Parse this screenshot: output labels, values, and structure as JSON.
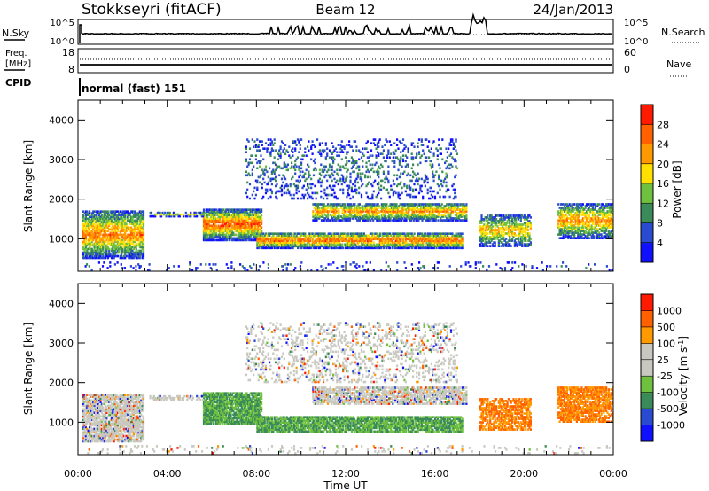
{
  "header": {
    "station": "Stokkseyri (fitACF)",
    "beam": "Beam 12",
    "date": "24/Jan/2013"
  },
  "noise_panel": {
    "left_label": "N.Sky",
    "right_label": "N.Search",
    "left_ticks": [
      "10^5",
      "10^0"
    ],
    "right_ticks": [
      "10^5",
      "10^0"
    ]
  },
  "freq_panel": {
    "left_label_1": "Freq.",
    "left_label_2": "[MHz]",
    "left_ticks": [
      "18",
      "8"
    ],
    "right_ticks": [
      "60",
      "0"
    ],
    "right_label": "Nave",
    "cpid_label": "CPID"
  },
  "cpid_text": "normal (fast) 151",
  "colors": {
    "power": [
      "#1010ff",
      "#2a4ad0",
      "#3a8a5a",
      "#70c040",
      "#ffe000",
      "#ff9900",
      "#ff6000",
      "#ff1a00"
    ],
    "velocity": [
      "#ff1a00",
      "#ff6000",
      "#ff9900",
      "#c8c8c0",
      "#c8c8c0",
      "#70c040",
      "#3a8a5a",
      "#2a4ad0",
      "#1010ff"
    ]
  },
  "chart_data": [
    {
      "type": "heatmap",
      "ylabel": "Slant Range [km]",
      "xlabel": "Time UT",
      "x_ticks": [
        "00:00",
        "04:00",
        "08:00",
        "12:00",
        "16:00",
        "20:00",
        "00:00"
      ],
      "y_ticks": [
        "1000",
        "2000",
        "3000",
        "4000"
      ],
      "colorbar_label": "Power [dB]",
      "colorbar_ticks": [
        "4",
        "8",
        "12",
        "16",
        "20",
        "24",
        "28"
      ],
      "xlim": [
        0,
        24
      ],
      "ylim": [
        180,
        4500
      ]
    },
    {
      "type": "heatmap",
      "ylabel": "Slant Range [km]",
      "xlabel": "Time UT",
      "x_ticks": [
        "00:00",
        "04:00",
        "08:00",
        "12:00",
        "16:00",
        "20:00",
        "00:00"
      ],
      "y_ticks": [
        "1000",
        "2000",
        "3000",
        "4000"
      ],
      "colorbar_label": "Velocity [m s^-1]",
      "colorbar_ticks": [
        "1000",
        "500",
        "100",
        "25",
        "-25",
        "-100",
        "-500",
        "-1000"
      ],
      "xlim": [
        0,
        24
      ],
      "ylim": [
        180,
        4500
      ]
    }
  ]
}
